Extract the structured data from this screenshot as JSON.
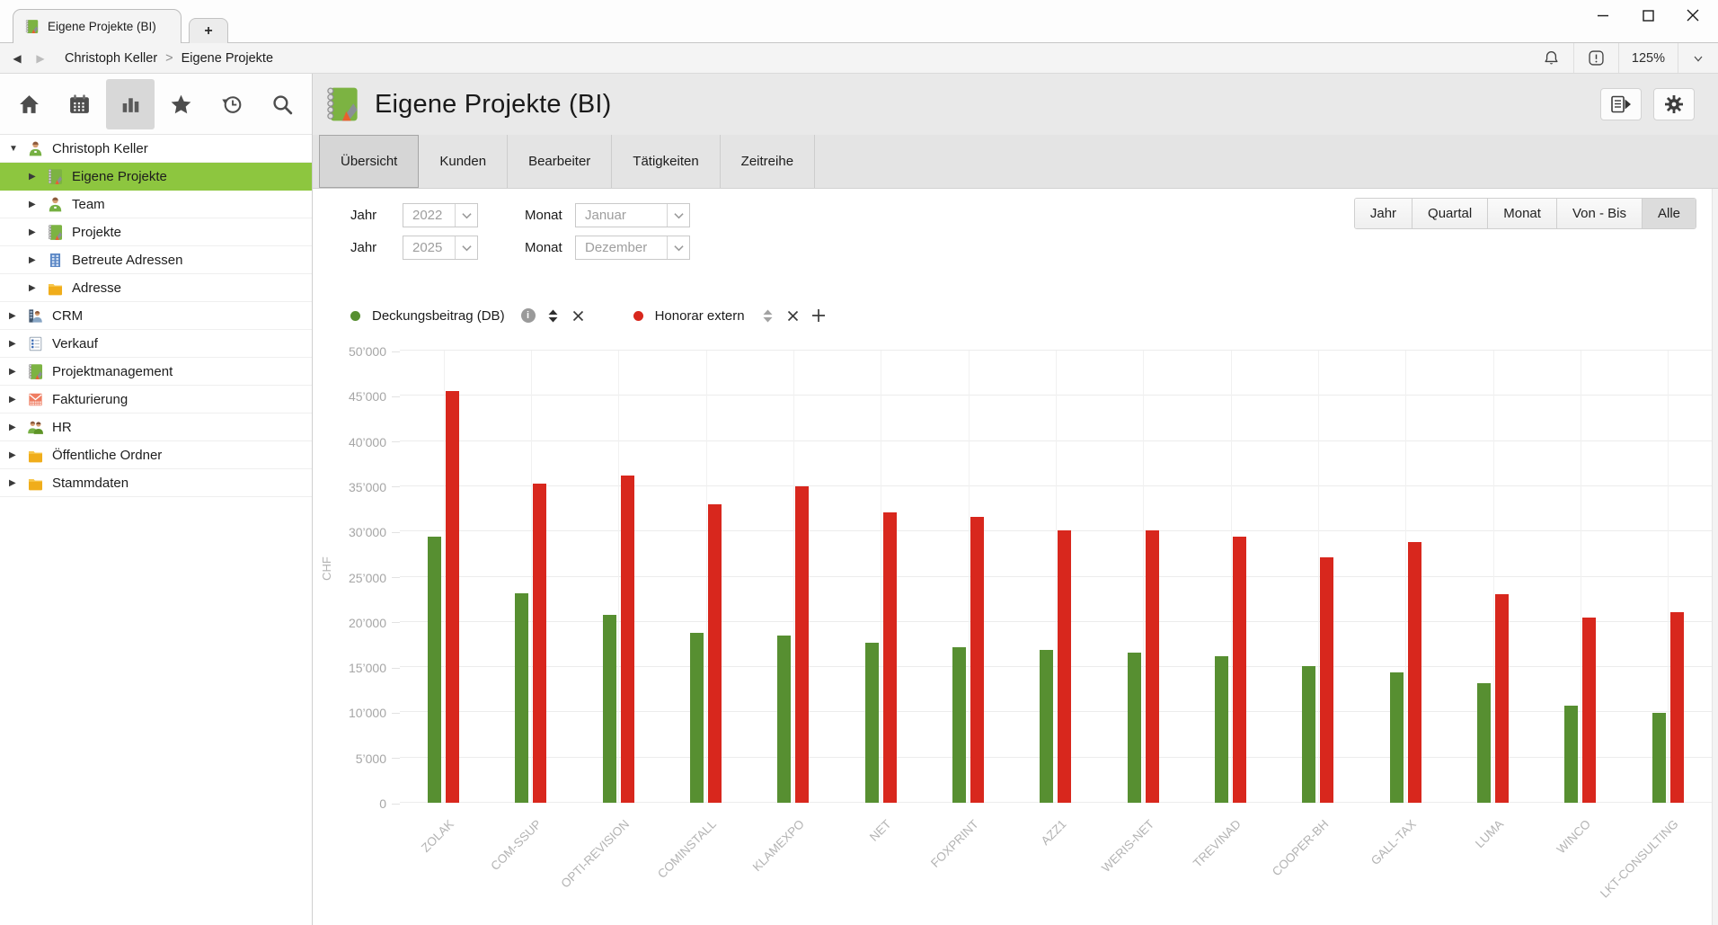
{
  "window": {
    "tab_title": "Eigene Projekte (BI)",
    "new_tab_label": "+",
    "zoom_level": "125%",
    "breadcrumb": {
      "parent": "Christoph Keller",
      "separator": ">",
      "current": "Eigene Projekte"
    }
  },
  "toolbar": {
    "icons": [
      {
        "name": "home",
        "active": false
      },
      {
        "name": "calendar",
        "active": false
      },
      {
        "name": "bar-chart",
        "active": true
      },
      {
        "name": "star",
        "active": false
      },
      {
        "name": "history",
        "active": false
      },
      {
        "name": "search",
        "active": false
      }
    ]
  },
  "sidebar": {
    "items": [
      {
        "label": "Christoph Keller",
        "icon": "user",
        "level": 0,
        "expanded": true,
        "selected": false
      },
      {
        "label": "Eigene Projekte",
        "icon": "notebook",
        "level": 1,
        "expanded": false,
        "selected": true
      },
      {
        "label": "Team",
        "icon": "user",
        "level": 1,
        "expanded": false,
        "selected": false
      },
      {
        "label": "Projekte",
        "icon": "notebook",
        "level": 1,
        "expanded": false,
        "selected": false
      },
      {
        "label": "Betreute Adressen",
        "icon": "building",
        "level": 1,
        "expanded": false,
        "selected": false
      },
      {
        "label": "Adresse",
        "icon": "folder",
        "level": 1,
        "expanded": false,
        "selected": false
      },
      {
        "label": "CRM",
        "icon": "crm",
        "level": 0,
        "expanded": false,
        "selected": false
      },
      {
        "label": "Verkauf",
        "icon": "document",
        "level": 0,
        "expanded": false,
        "selected": false
      },
      {
        "label": "Projektmanagement",
        "icon": "notebook",
        "level": 0,
        "expanded": false,
        "selected": false
      },
      {
        "label": "Fakturierung",
        "icon": "invoice",
        "level": 0,
        "expanded": false,
        "selected": false
      },
      {
        "label": "HR",
        "icon": "people",
        "level": 0,
        "expanded": false,
        "selected": false
      },
      {
        "label": "Öffentliche Ordner",
        "icon": "folder",
        "level": 0,
        "expanded": false,
        "selected": false
      },
      {
        "label": "Stammdaten",
        "icon": "folder",
        "level": 0,
        "expanded": false,
        "selected": false
      }
    ]
  },
  "header": {
    "title": "Eigene Projekte (BI)"
  },
  "tabs": [
    {
      "label": "Übersicht",
      "selected": true
    },
    {
      "label": "Kunden",
      "selected": false
    },
    {
      "label": "Bearbeiter",
      "selected": false
    },
    {
      "label": "Tätigkeiten",
      "selected": false
    },
    {
      "label": "Zeitreihe",
      "selected": false
    }
  ],
  "filters": {
    "rows": [
      {
        "year_label": "Jahr",
        "year_value": "2022",
        "month_label": "Monat",
        "month_value": "Januar"
      },
      {
        "year_label": "Jahr",
        "year_value": "2025",
        "month_label": "Monat",
        "month_value": "Dezember"
      }
    ],
    "range_buttons": [
      {
        "label": "Jahr",
        "selected": false
      },
      {
        "label": "Quartal",
        "selected": false
      },
      {
        "label": "Monat",
        "selected": false
      },
      {
        "label": "Von - Bis",
        "selected": false
      },
      {
        "label": "Alle",
        "selected": true
      }
    ]
  },
  "legend": [
    {
      "label": "Deckungsbeitrag (DB)",
      "color": "#578f31",
      "controls": [
        {
          "type": "info"
        },
        {
          "type": "sort",
          "active": true
        },
        {
          "type": "remove"
        }
      ]
    },
    {
      "label": "Honorar extern",
      "color": "#d8271d",
      "controls": [
        {
          "type": "sort",
          "active": false
        },
        {
          "type": "remove"
        },
        {
          "type": "add"
        }
      ]
    }
  ],
  "chart_data": {
    "type": "bar",
    "title": "",
    "xlabel": "",
    "ylabel": "CHF",
    "ylim": [
      0,
      50000
    ],
    "ytick_step": 5000,
    "grid": true,
    "legend_position": "top",
    "categories": [
      "ZOLAK",
      "COM-SSUP",
      "OPTI-REVISION",
      "COMINSTALL",
      "KLAMEXPO",
      "NET",
      "FOXPRINT",
      "AZZ1",
      "WERIS-NET",
      "TREVINAD",
      "COOPER-BH",
      "GALL-TAX",
      "LUMA",
      "WINCO",
      "LKT-CONSULTING"
    ],
    "series": [
      {
        "name": "Deckungsbeitrag (DB)",
        "color": "#578f31",
        "values": [
          29400,
          23200,
          20800,
          18800,
          18500,
          17700,
          17200,
          16900,
          16600,
          16200,
          15100,
          14400,
          13200,
          10700,
          9900
        ]
      },
      {
        "name": "Honorar extern",
        "color": "#d8271d",
        "values": [
          45500,
          35300,
          36200,
          33000,
          35000,
          32100,
          31600,
          30100,
          30100,
          29400,
          27100,
          28800,
          23100,
          20500,
          21100
        ]
      }
    ]
  }
}
